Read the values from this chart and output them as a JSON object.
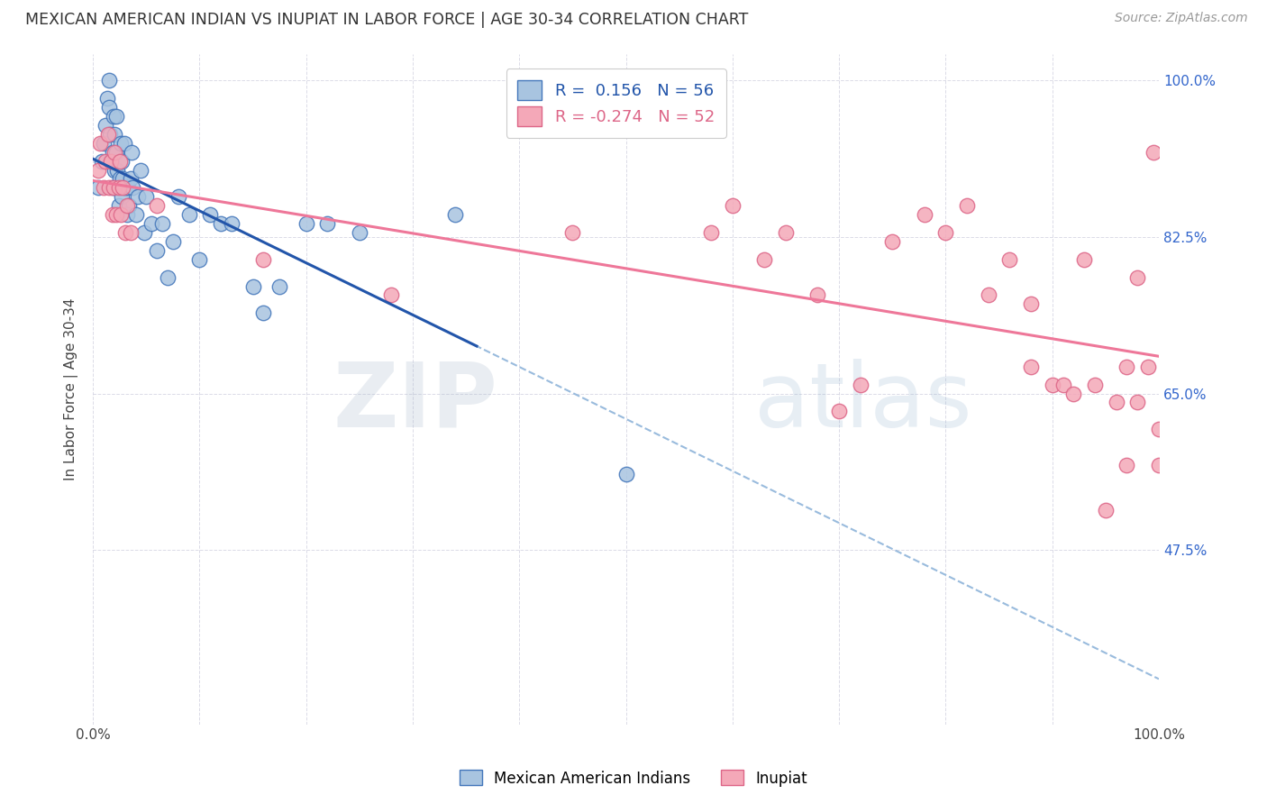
{
  "title": "MEXICAN AMERICAN INDIAN VS INUPIAT IN LABOR FORCE | AGE 30-34 CORRELATION CHART",
  "source": "Source: ZipAtlas.com",
  "ylabel": "In Labor Force | Age 30-34",
  "xlim": [
    0.0,
    1.0
  ],
  "ylim": [
    0.28,
    1.03
  ],
  "x_ticks": [
    0.0,
    0.1,
    0.2,
    0.3,
    0.4,
    0.5,
    0.6,
    0.7,
    0.8,
    0.9,
    1.0
  ],
  "y_ticks": [
    1.0,
    0.825,
    0.65,
    0.475
  ],
  "y_tick_labels": [
    "100.0%",
    "82.5%",
    "65.0%",
    "47.5%"
  ],
  "blue_color": "#A8C4E0",
  "pink_color": "#F4A8B8",
  "blue_edge_color": "#4477BB",
  "pink_edge_color": "#DD6688",
  "blue_line_color": "#2255AA",
  "pink_line_color": "#EE7799",
  "dashed_line_color": "#99BBDD",
  "legend_R_blue": "0.156",
  "legend_N_blue": 56,
  "legend_R_pink": "-0.274",
  "legend_N_pink": 52,
  "watermark_zip": "ZIP",
  "watermark_atlas": "atlas",
  "blue_scatter_x": [
    0.005,
    0.008,
    0.01,
    0.012,
    0.013,
    0.015,
    0.015,
    0.016,
    0.017,
    0.018,
    0.018,
    0.019,
    0.02,
    0.02,
    0.021,
    0.022,
    0.022,
    0.023,
    0.024,
    0.025,
    0.026,
    0.027,
    0.027,
    0.028,
    0.029,
    0.03,
    0.032,
    0.033,
    0.034,
    0.035,
    0.036,
    0.037,
    0.04,
    0.042,
    0.045,
    0.048,
    0.05,
    0.055,
    0.06,
    0.065,
    0.07,
    0.075,
    0.08,
    0.09,
    0.1,
    0.11,
    0.12,
    0.13,
    0.15,
    0.16,
    0.175,
    0.2,
    0.22,
    0.25,
    0.34,
    0.5
  ],
  "blue_scatter_y": [
    0.88,
    0.91,
    0.93,
    0.95,
    0.98,
    1.0,
    0.97,
    0.94,
    0.91,
    0.88,
    0.92,
    0.96,
    0.94,
    0.9,
    0.88,
    0.92,
    0.96,
    0.9,
    0.86,
    0.89,
    0.93,
    0.91,
    0.87,
    0.89,
    0.93,
    0.88,
    0.85,
    0.88,
    0.86,
    0.89,
    0.92,
    0.88,
    0.85,
    0.87,
    0.9,
    0.83,
    0.87,
    0.84,
    0.81,
    0.84,
    0.78,
    0.82,
    0.87,
    0.85,
    0.8,
    0.85,
    0.84,
    0.84,
    0.77,
    0.74,
    0.77,
    0.84,
    0.84,
    0.83,
    0.85,
    0.56
  ],
  "pink_scatter_x": [
    0.005,
    0.007,
    0.01,
    0.012,
    0.014,
    0.015,
    0.017,
    0.018,
    0.019,
    0.02,
    0.022,
    0.024,
    0.025,
    0.026,
    0.028,
    0.03,
    0.032,
    0.035,
    0.06,
    0.16,
    0.28,
    0.45,
    0.58,
    0.6,
    0.63,
    0.65,
    0.68,
    0.7,
    0.72,
    0.75,
    0.78,
    0.8,
    0.82,
    0.84,
    0.86,
    0.88,
    0.88,
    0.9,
    0.91,
    0.92,
    0.93,
    0.94,
    0.95,
    0.96,
    0.97,
    0.97,
    0.98,
    0.98,
    0.99,
    0.995,
    1.0,
    1.0
  ],
  "pink_scatter_y": [
    0.9,
    0.93,
    0.88,
    0.91,
    0.94,
    0.88,
    0.91,
    0.85,
    0.88,
    0.92,
    0.85,
    0.88,
    0.91,
    0.85,
    0.88,
    0.83,
    0.86,
    0.83,
    0.86,
    0.8,
    0.76,
    0.83,
    0.83,
    0.86,
    0.8,
    0.83,
    0.76,
    0.63,
    0.66,
    0.82,
    0.85,
    0.83,
    0.86,
    0.76,
    0.8,
    0.68,
    0.75,
    0.66,
    0.66,
    0.65,
    0.8,
    0.66,
    0.52,
    0.64,
    0.68,
    0.57,
    0.78,
    0.64,
    0.68,
    0.92,
    0.61,
    0.57
  ]
}
